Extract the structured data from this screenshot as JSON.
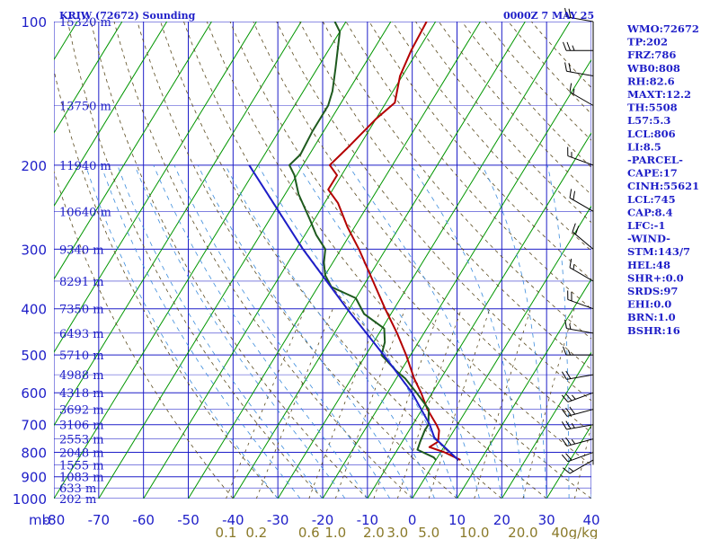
{
  "header": {
    "title": "KRIW (72672) Sounding",
    "datetime": "0000Z  7 MAY 25"
  },
  "indices": [
    "WMO:72672",
    "TP:202",
    "FRZ:786",
    "WB0:808",
    "RH:82.6",
    "MAXT:12.2",
    "TH:5508",
    "L57:5.3",
    "LCL:806",
    "LI:8.5",
    "-PARCEL-",
    "CAPE:17",
    "CINH:55621",
    "LCL:745",
    "CAP:8.4",
    "LFC:-1",
    "-WIND-",
    "STM:143/7",
    "HEL:48",
    "SHR+:0.0",
    "SRDS:97",
    "EHI:0.0",
    "BRN:1.0",
    "BSHR:16"
  ],
  "chart_data": {
    "type": "line",
    "title": "KRIW (72672) Sounding",
    "xlabel": "",
    "ylabel": "mb",
    "x_unit_label": "mb",
    "ylim": [
      1000,
      100
    ],
    "xlim": [
      -80,
      40
    ],
    "y_scale": "log",
    "grid": true,
    "pressure_labels": [
      "100",
      "200",
      "300",
      "400",
      "500",
      "600",
      "700",
      "800",
      "900",
      "1000"
    ],
    "pressure_values": [
      100,
      200,
      300,
      400,
      500,
      600,
      700,
      800,
      900,
      1000
    ],
    "temperature_ticks": [
      "-80",
      "-70",
      "-60",
      "-50",
      "-40",
      "-30",
      "-20",
      "-10",
      "0",
      "10",
      "20",
      "30",
      "40"
    ],
    "temperature_values": [
      -80,
      -70,
      -60,
      -50,
      -40,
      -30,
      -20,
      -10,
      0,
      10,
      20,
      30,
      40
    ],
    "height_labels": [
      {
        "p": 100,
        "label": "15320 m"
      },
      {
        "p": 150,
        "label": "13750 m"
      },
      {
        "p": 200,
        "label": "11940 m"
      },
      {
        "p": 250,
        "label": "10640 m"
      },
      {
        "p": 300,
        "label": "9340 m"
      },
      {
        "p": 350,
        "label": "8291 m"
      },
      {
        "p": 400,
        "label": "7350 m"
      },
      {
        "p": 450,
        "label": "6493 m"
      },
      {
        "p": 500,
        "label": "5710 m"
      },
      {
        "p": 550,
        "label": "4988 m"
      },
      {
        "p": 600,
        "label": "4318 m"
      },
      {
        "p": 650,
        "label": "3692 m"
      },
      {
        "p": 700,
        "label": "3106 m"
      },
      {
        "p": 750,
        "label": "2553 m"
      },
      {
        "p": 800,
        "label": "2048 m"
      },
      {
        "p": 850,
        "label": "1555 m"
      },
      {
        "p": 900,
        "label": "1083 m"
      },
      {
        "p": 950,
        "label": "633 m"
      },
      {
        "p": 1000,
        "label": "202 m"
      }
    ],
    "mixing_ratio_labels": [
      "0.1",
      "0.2",
      "0.6",
      "1.0",
      "2.0",
      "3.0",
      "5.0",
      "10.0",
      "20.0",
      "40g/kg"
    ],
    "mixing_ratio_values": [
      0.1,
      0.2,
      0.6,
      1.0,
      2.0,
      3.0,
      5.0,
      10.0,
      20.0,
      40
    ],
    "series": [
      {
        "role": "temperature",
        "color": "#b40000",
        "points": [
          {
            "p": 830,
            "t": 5.5
          },
          {
            "p": 800,
            "t": 0.9
          },
          {
            "p": 780,
            "t": -3.2
          },
          {
            "p": 760,
            "t": -2.0
          },
          {
            "p": 720,
            "t": -3.3
          },
          {
            "p": 700,
            "t": -4.7
          },
          {
            "p": 650,
            "t": -8.8
          },
          {
            "p": 600,
            "t": -12.5
          },
          {
            "p": 560,
            "t": -16.0
          },
          {
            "p": 500,
            "t": -21.0
          },
          {
            "p": 450,
            "t": -26.0
          },
          {
            "p": 400,
            "t": -32.0
          },
          {
            "p": 350,
            "t": -38.5
          },
          {
            "p": 300,
            "t": -46.0
          },
          {
            "p": 270,
            "t": -51.5
          },
          {
            "p": 240,
            "t": -57.0
          },
          {
            "p": 225,
            "t": -61.0
          },
          {
            "p": 210,
            "t": -61.0
          },
          {
            "p": 200,
            "t": -64.0
          },
          {
            "p": 185,
            "t": -62.5
          },
          {
            "p": 160,
            "t": -60.0
          },
          {
            "p": 148,
            "t": -58.0
          },
          {
            "p": 130,
            "t": -60.5
          },
          {
            "p": 115,
            "t": -61.5
          },
          {
            "p": 100,
            "t": -62.0
          }
        ]
      },
      {
        "role": "dewpoint",
        "color": "#1e5a1e",
        "points": [
          {
            "p": 830,
            "t": 0.0
          },
          {
            "p": 820,
            "t": -0.8
          },
          {
            "p": 790,
            "t": -5.5
          },
          {
            "p": 760,
            "t": -6.0
          },
          {
            "p": 720,
            "t": -6.5
          },
          {
            "p": 700,
            "t": -6.5
          },
          {
            "p": 650,
            "t": -8.5
          },
          {
            "p": 600,
            "t": -13.5
          },
          {
            "p": 560,
            "t": -18.0
          },
          {
            "p": 540,
            "t": -21.0
          },
          {
            "p": 500,
            "t": -26.5
          },
          {
            "p": 470,
            "t": -27.5
          },
          {
            "p": 440,
            "t": -29.5
          },
          {
            "p": 410,
            "t": -36.0
          },
          {
            "p": 380,
            "t": -40.0
          },
          {
            "p": 360,
            "t": -47.0
          },
          {
            "p": 340,
            "t": -50.0
          },
          {
            "p": 320,
            "t": -52.0
          },
          {
            "p": 300,
            "t": -53.5
          },
          {
            "p": 280,
            "t": -57.5
          },
          {
            "p": 260,
            "t": -61.0
          },
          {
            "p": 230,
            "t": -67.0
          },
          {
            "p": 210,
            "t": -70.5
          },
          {
            "p": 200,
            "t": -73.0
          },
          {
            "p": 190,
            "t": -72.0
          },
          {
            "p": 170,
            "t": -72.5
          },
          {
            "p": 150,
            "t": -72.5
          },
          {
            "p": 140,
            "t": -73.5
          },
          {
            "p": 125,
            "t": -76.0
          },
          {
            "p": 105,
            "t": -80.0
          },
          {
            "p": 100,
            "t": -82.5
          }
        ]
      },
      {
        "role": "parcel",
        "color": "#1e1ec8",
        "points": [
          {
            "p": 830,
            "t": 5.0
          },
          {
            "p": 745,
            "t": -3.4
          },
          {
            "p": 700,
            "t": -6.2
          },
          {
            "p": 600,
            "t": -14.5
          },
          {
            "p": 500,
            "t": -26.0
          },
          {
            "p": 400,
            "t": -40.5
          },
          {
            "p": 300,
            "t": -58.5
          },
          {
            "p": 200,
            "t": -82.0
          }
        ]
      }
    ],
    "wind_barbs": [
      {
        "p": 830,
        "dir": 240,
        "spd": 15
      },
      {
        "p": 800,
        "dir": 250,
        "spd": 20
      },
      {
        "p": 750,
        "dir": 255,
        "spd": 25
      },
      {
        "p": 700,
        "dir": 260,
        "spd": 25
      },
      {
        "p": 650,
        "dir": 255,
        "spd": 30
      },
      {
        "p": 600,
        "dir": 250,
        "spd": 25
      },
      {
        "p": 550,
        "dir": 260,
        "spd": 20
      },
      {
        "p": 500,
        "dir": 270,
        "spd": 15
      },
      {
        "p": 450,
        "dir": 280,
        "spd": 15
      },
      {
        "p": 400,
        "dir": 290,
        "spd": 20
      },
      {
        "p": 350,
        "dir": 300,
        "spd": 15
      },
      {
        "p": 300,
        "dir": 310,
        "spd": 20
      },
      {
        "p": 250,
        "dir": 300,
        "spd": 20
      },
      {
        "p": 200,
        "dir": 290,
        "spd": 15
      },
      {
        "p": 150,
        "dir": 300,
        "spd": 15
      },
      {
        "p": 130,
        "dir": 280,
        "spd": 20
      },
      {
        "p": 115,
        "dir": 270,
        "spd": 25
      },
      {
        "p": 100,
        "dir": 280,
        "spd": 20
      }
    ],
    "colors": {
      "grid": "#1e1ec8",
      "isotherm": "#009600",
      "dry_adiabat": "#5a4a1e",
      "moist_adiabat": "#3c8cdc",
      "mixing_ratio_label": "#8a7a2a"
    }
  }
}
